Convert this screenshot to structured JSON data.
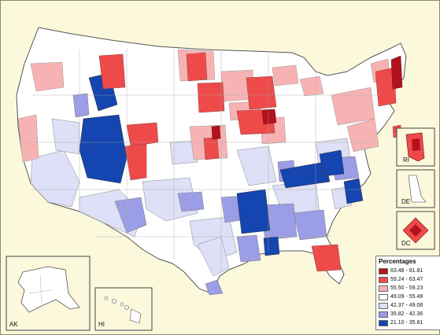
{
  "legend": {
    "title": "Percentages",
    "items": [
      {
        "range": "63.48 - 81.81",
        "color": "#b3121d"
      },
      {
        "range": "59.24 - 63.47",
        "color": "#ef4a4a"
      },
      {
        "range": "55.50 - 59.23",
        "color": "#f7b3b3"
      },
      {
        "range": "49.09 - 55.49",
        "color": "#ffffff"
      },
      {
        "range": "42.37 - 49.08",
        "color": "#dde0f6"
      },
      {
        "range": "35.82 - 42.36",
        "color": "#9b9ee6"
      },
      {
        "range": "21.10 - 35.81",
        "color": "#1445b0"
      }
    ]
  },
  "insets": {
    "ak": "AK",
    "hi": "HI",
    "ri": "RI",
    "de": "DE",
    "dc": "DC"
  }
}
